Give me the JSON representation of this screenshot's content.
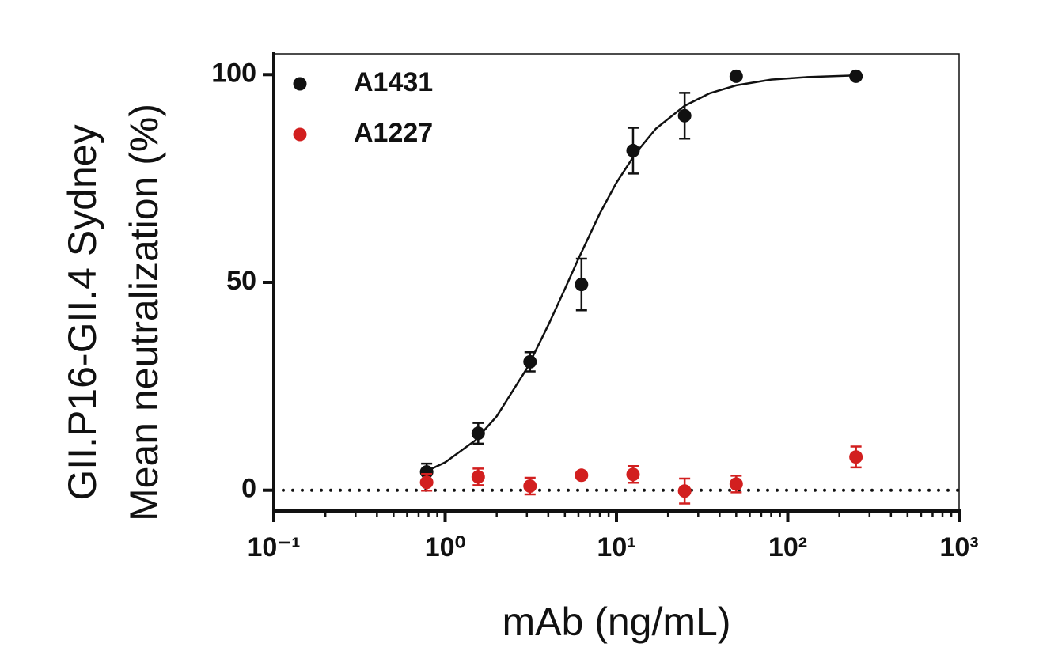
{
  "chart_data": {
    "type": "scatter",
    "xlabel": "mAb (ng/mL)",
    "ylabel": [
      "GII.P16-GII.4 Sydney",
      "Mean neutralization (%)"
    ],
    "xscale": "log",
    "xlim": [
      0.1,
      1000
    ],
    "xticks": [
      {
        "value": 0.1,
        "label": "10⁻¹"
      },
      {
        "value": 1,
        "label": "10⁰"
      },
      {
        "value": 10,
        "label": "10¹"
      },
      {
        "value": 100,
        "label": "10²"
      },
      {
        "value": 1000,
        "label": "10³"
      }
    ],
    "ylim": [
      -5,
      105
    ],
    "yticks": [
      0,
      50,
      100
    ],
    "legend": "top-left",
    "reference_line": 0,
    "series": [
      {
        "name": "A1431",
        "color": "#111111",
        "x": [
          0.78,
          1.56,
          3.13,
          6.25,
          12.5,
          25,
          50,
          250
        ],
        "values": [
          4.4,
          13.7,
          30.9,
          49.5,
          81.7,
          90.1,
          99.6,
          99.6
        ],
        "errors": [
          2,
          2.5,
          2.3,
          6.2,
          5.5,
          5.5,
          null,
          null
        ]
      },
      {
        "name": "A1227",
        "color": "#d21f1f",
        "x": [
          0.78,
          1.56,
          3.13,
          6.25,
          12.5,
          25,
          50,
          250
        ],
        "values": [
          1.9,
          3.2,
          1,
          3.6,
          3.8,
          -0.2,
          1.5,
          8
        ],
        "errors": [
          2,
          2,
          2,
          null,
          2,
          3,
          2,
          2.5
        ]
      }
    ],
    "fit": {
      "color": "#111111",
      "x": [
        0.78,
        1,
        1.5,
        2,
        3,
        4,
        5,
        6,
        8,
        10,
        13,
        17,
        25,
        35,
        50,
        80,
        130,
        250
      ],
      "values": [
        4.6,
        6.7,
        12,
        17.8,
        29.3,
        39.7,
        48.4,
        55.7,
        66.6,
        74,
        81.2,
        87,
        92.5,
        95.5,
        97.4,
        98.8,
        99.4,
        99.8
      ]
    }
  }
}
